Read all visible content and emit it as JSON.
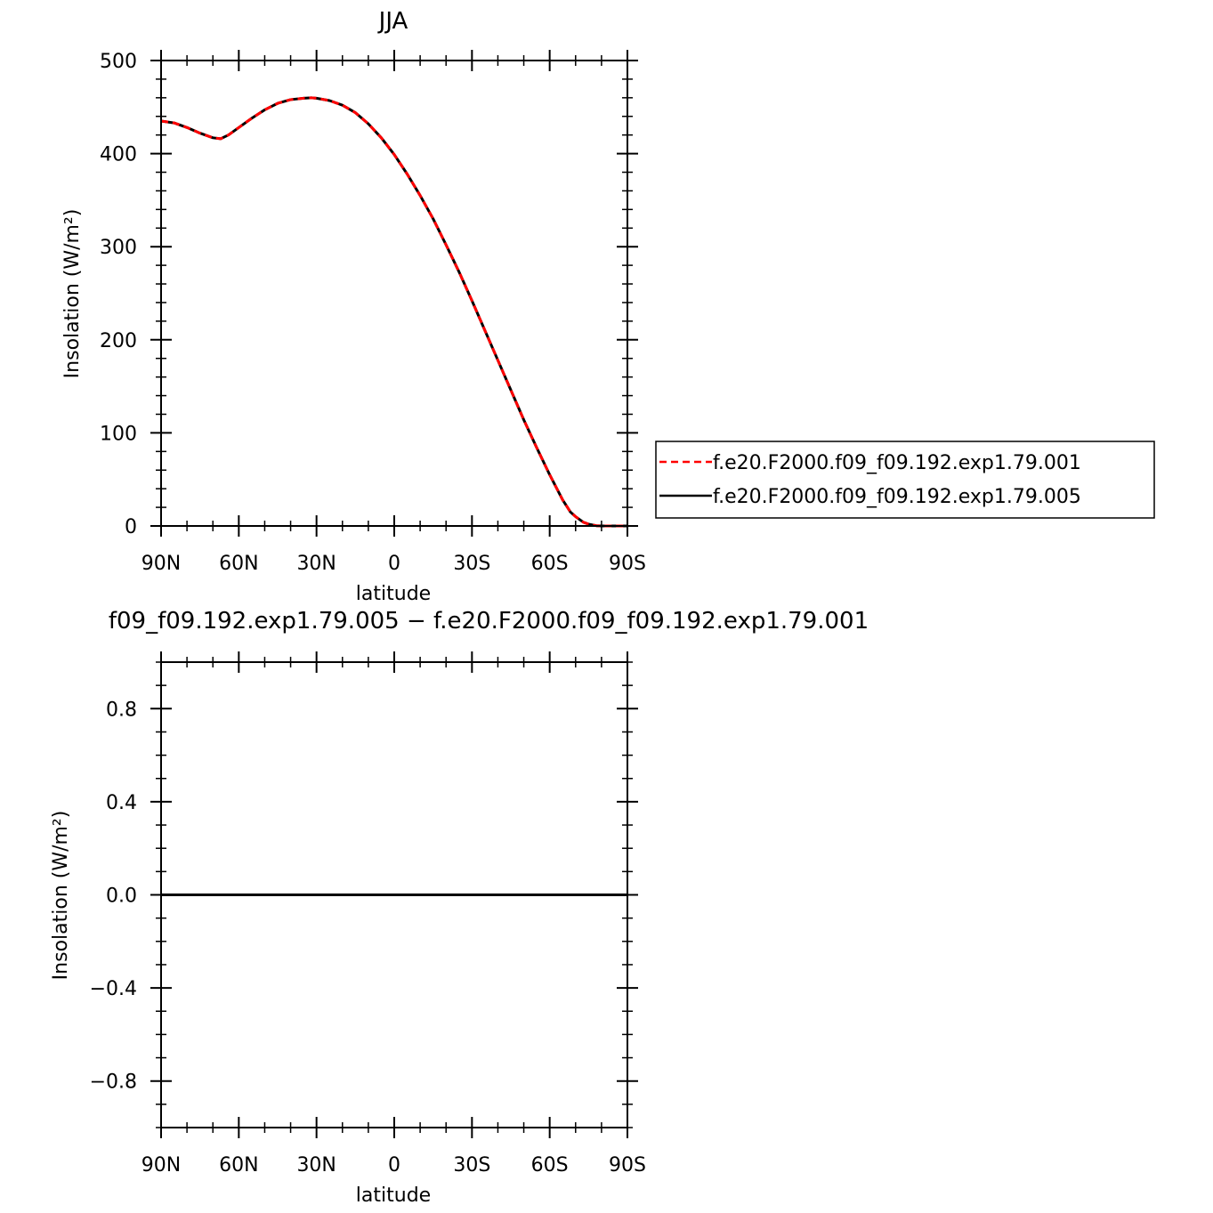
{
  "chart_data": [
    {
      "type": "line",
      "title": "JJA",
      "xlabel": "latitude",
      "ylabel": "Insolation (W/m²)",
      "xlim": [
        -90,
        90
      ],
      "ylim": [
        0,
        500
      ],
      "x_ticks": [
        -90,
        -60,
        -30,
        0,
        30,
        60,
        90
      ],
      "x_tick_labels": [
        "90N",
        "60N",
        "30N",
        "0",
        "30S",
        "60S",
        "90S"
      ],
      "y_ticks": [
        0,
        100,
        200,
        300,
        400,
        500
      ],
      "y_tick_labels": [
        "0",
        "100",
        "200",
        "300",
        "400",
        "500"
      ],
      "x": [
        -90,
        -85,
        -80,
        -75,
        -70,
        -67,
        -64,
        -60,
        -55,
        -50,
        -45,
        -40,
        -35,
        -32,
        -30,
        -25,
        -20,
        -15,
        -10,
        -5,
        0,
        5,
        10,
        15,
        20,
        25,
        30,
        35,
        40,
        45,
        50,
        55,
        60,
        65,
        68,
        70,
        73,
        75,
        78,
        80,
        85,
        90
      ],
      "series": [
        {
          "name": "f.e20.F2000.f09_f09.192.exp1.79.001",
          "color": "#ff0000",
          "dash": "dashed",
          "values": [
            435,
            433,
            428,
            422,
            417,
            416,
            420,
            428,
            438,
            447,
            454,
            458,
            459.5,
            460,
            459.5,
            457,
            452,
            444,
            432,
            417,
            399,
            378,
            355,
            330,
            302,
            273,
            242,
            210,
            178,
            146,
            114,
            84,
            55,
            28,
            15,
            10,
            4,
            2,
            0.3,
            0,
            0,
            0
          ]
        },
        {
          "name": "f.e20.F2000.f09_f09.192.exp1.79.005",
          "color": "#000000",
          "dash": "solid",
          "values": [
            435,
            433,
            428,
            422,
            417,
            416,
            420,
            428,
            438,
            447,
            454,
            458,
            459.5,
            460,
            459.5,
            457,
            452,
            444,
            432,
            417,
            399,
            378,
            355,
            330,
            302,
            273,
            242,
            210,
            178,
            146,
            114,
            84,
            55,
            28,
            15,
            10,
            4,
            2,
            0.3,
            0,
            0,
            0
          ]
        }
      ],
      "legend_position": "right"
    },
    {
      "type": "line",
      "title": "f09_f09.192.exp1.79.005 − f.e20.F2000.f09_f09.192.exp1.79.001",
      "xlabel": "latitude",
      "ylabel": "Insolation (W/m²)",
      "xlim": [
        -90,
        90
      ],
      "ylim": [
        -1,
        1
      ],
      "x_ticks": [
        -90,
        -60,
        -30,
        0,
        30,
        60,
        90
      ],
      "x_tick_labels": [
        "90N",
        "60N",
        "30N",
        "0",
        "30S",
        "60S",
        "90S"
      ],
      "y_ticks": [
        -0.8,
        -0.4,
        0.0,
        0.4,
        0.8
      ],
      "y_tick_labels": [
        "−0.8",
        "−0.4",
        "0.0",
        "0.4",
        "0.8"
      ],
      "x": [
        -90,
        90
      ],
      "series": [
        {
          "color": "#000000",
          "dash": "solid",
          "values": [
            0,
            0
          ]
        }
      ]
    }
  ]
}
